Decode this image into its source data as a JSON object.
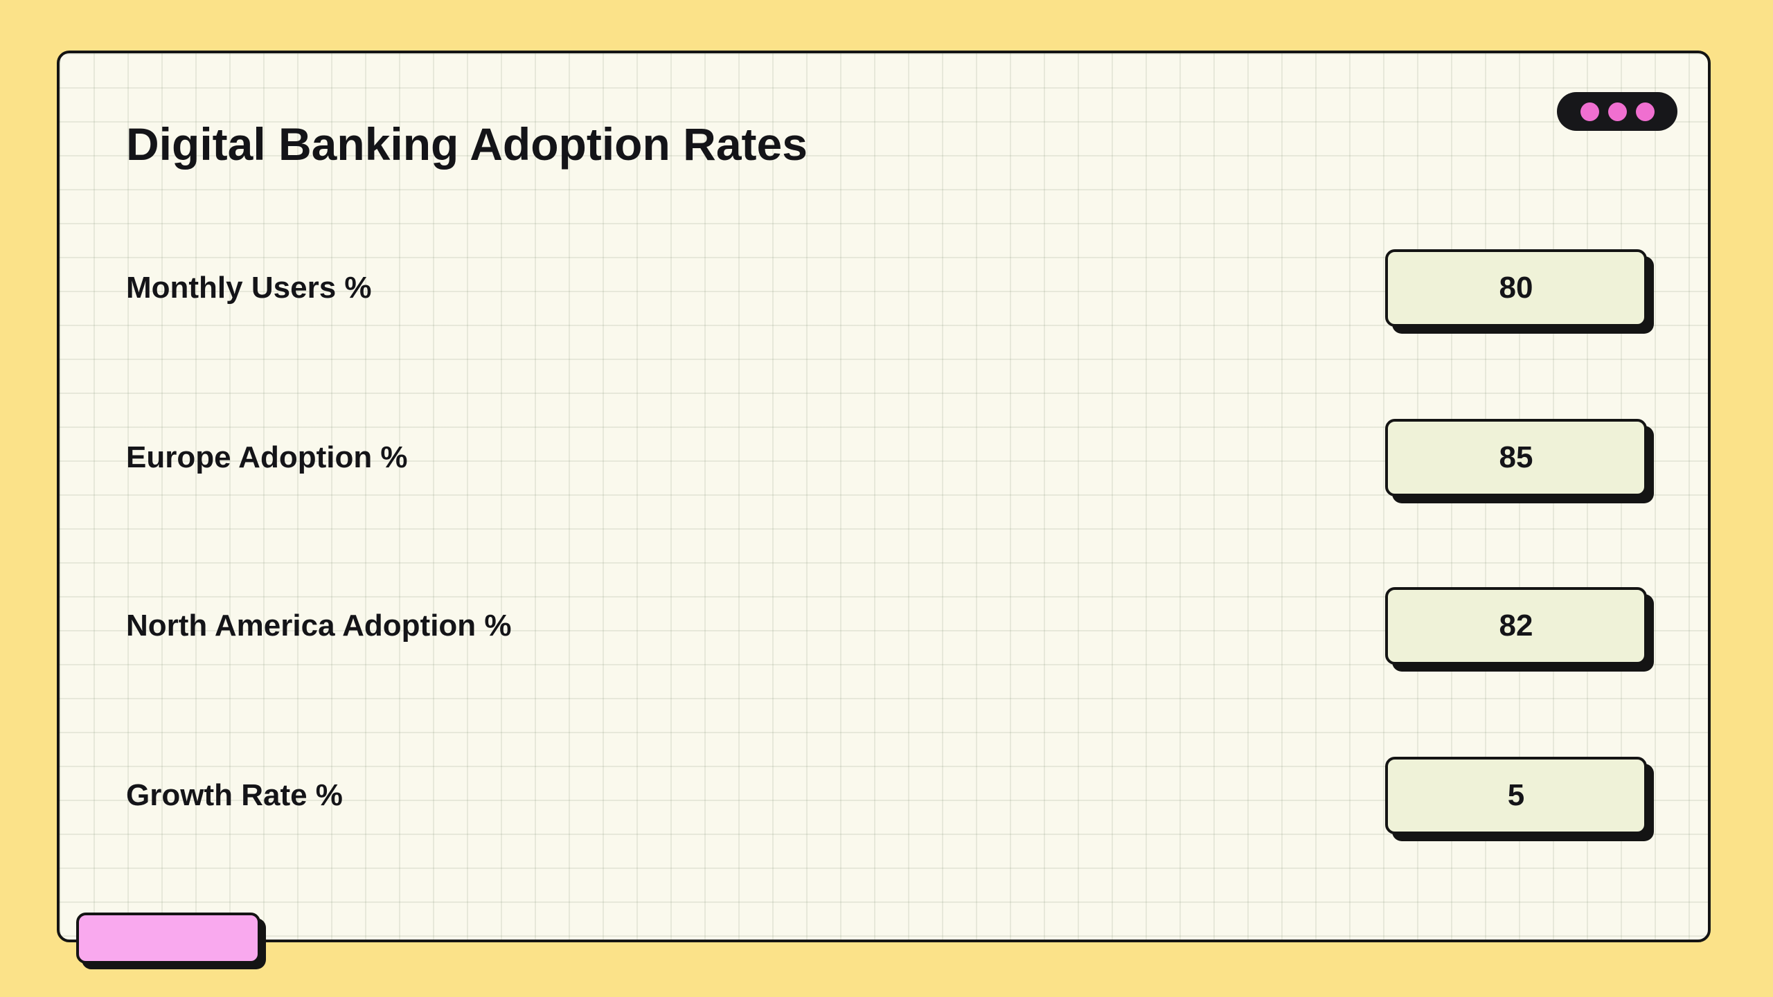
{
  "window": {
    "title": "Digital Banking Adoption Rates",
    "controls_icon": "three-dots"
  },
  "fields": [
    {
      "label": "Monthly Users %",
      "value": "80"
    },
    {
      "label": "Europe Adoption %",
      "value": "85"
    },
    {
      "label": "North America Adoption %",
      "value": "82"
    },
    {
      "label": "Growth Rate %",
      "value": "5"
    }
  ],
  "footer_button": {
    "label": ""
  },
  "colors": {
    "background": "#FBE289",
    "card": "#FAF9ED",
    "card_border": "#141414",
    "value_box": "#EFF2D8",
    "accent_pink": "#F9A9EE",
    "dot_pink": "#F06FD0",
    "pill": "#17171A",
    "text": "#141418"
  }
}
